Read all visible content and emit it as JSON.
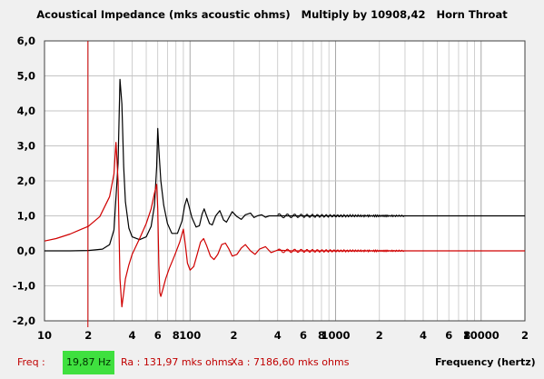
{
  "header": {
    "title": "Acoustical Impedance (mks acoustic ohms)   Multiply by 10908,42   Horn Throat"
  },
  "status": {
    "freq_label": "Freq :",
    "freq_value": "19,87 Hz",
    "ra": "Ra : 131,97 mks ohms",
    "xa": "Xa : 7186,60 mks ohms",
    "xlabel": "Frequency (hertz)"
  },
  "colors": {
    "resistance": "#000000",
    "reactance": "#d00000",
    "cursor": "#cc0000",
    "highlight": "#3fe03f",
    "grid": "#c4c4c4"
  },
  "chart_data": {
    "type": "line",
    "title": "Acoustical Impedance (mks acoustic ohms)   Multiply by 10908,42   Horn Throat",
    "xlabel": "Frequency (hertz)",
    "ylabel": "",
    "xscale": "log",
    "xlim": [
      10,
      20000
    ],
    "ylim": [
      -2.0,
      6.0
    ],
    "grid": true,
    "y_ticks": [
      "6,0",
      "5,0",
      "4,0",
      "3,0",
      "2,0",
      "1,0",
      "0,0",
      "-1,0",
      "-2,0"
    ],
    "x_ticks": [
      {
        "value": 10,
        "label": "10"
      },
      {
        "value": 20,
        "label": "2"
      },
      {
        "value": 40,
        "label": "4"
      },
      {
        "value": 60,
        "label": "6"
      },
      {
        "value": 80,
        "label": "8"
      },
      {
        "value": 100,
        "label": "100"
      },
      {
        "value": 200,
        "label": "2"
      },
      {
        "value": 400,
        "label": "4"
      },
      {
        "value": 600,
        "label": "6"
      },
      {
        "value": 800,
        "label": "8"
      },
      {
        "value": 1000,
        "label": "1000"
      },
      {
        "value": 2000,
        "label": "2"
      },
      {
        "value": 4000,
        "label": "4"
      },
      {
        "value": 6000,
        "label": "6"
      },
      {
        "value": 8000,
        "label": "8"
      },
      {
        "value": 10000,
        "label": "10000"
      },
      {
        "value": 20000,
        "label": "2"
      }
    ],
    "cursor_x": 19.87,
    "series": [
      {
        "role": "resistance",
        "color": "#000000",
        "x": [
          10,
          15,
          20,
          25,
          28,
          30,
          32,
          33,
          34,
          35,
          36,
          38,
          40,
          45,
          50,
          54,
          57,
          59,
          60,
          61,
          63,
          66,
          70,
          75,
          82,
          88,
          92,
          95,
          98,
          103,
          110,
          116,
          121,
          125,
          130,
          136,
          142,
          150,
          160,
          170,
          178,
          185,
          195,
          210,
          225,
          240,
          260,
          275,
          290,
          310,
          330,
          350,
          400,
          500,
          700,
          1000,
          2000,
          5000,
          10000,
          20000
        ],
        "y": [
          0.0,
          0.0,
          0.01,
          0.05,
          0.18,
          0.6,
          2.5,
          4.9,
          4.2,
          2.4,
          1.4,
          0.65,
          0.4,
          0.32,
          0.4,
          0.7,
          1.3,
          2.4,
          3.5,
          2.9,
          2.0,
          1.3,
          0.78,
          0.5,
          0.5,
          0.85,
          1.3,
          1.5,
          1.3,
          0.95,
          0.68,
          0.72,
          1.05,
          1.2,
          1.0,
          0.78,
          0.74,
          1.0,
          1.15,
          0.88,
          0.82,
          0.95,
          1.12,
          0.98,
          0.9,
          1.03,
          1.08,
          0.95,
          1.0,
          1.03,
          0.96,
          1.0,
          1.0,
          1.0,
          1.0,
          1.0,
          1.0,
          1.0,
          1.0,
          1.0
        ]
      },
      {
        "role": "reactance",
        "color": "#d00000",
        "x": [
          10,
          12,
          15,
          18,
          20,
          24,
          28,
          30,
          31,
          32,
          33,
          34,
          35,
          36,
          38,
          40,
          45,
          50,
          54,
          57,
          59,
          60,
          61,
          62,
          63,
          65,
          68,
          72,
          78,
          85,
          90,
          93,
          96,
          100,
          106,
          112,
          118,
          124,
          130,
          138,
          146,
          155,
          165,
          175,
          185,
          195,
          210,
          225,
          240,
          260,
          280,
          300,
          330,
          360,
          400,
          500,
          700,
          1000,
          2000,
          5000,
          10000,
          20000
        ],
        "y": [
          0.28,
          0.35,
          0.48,
          0.62,
          0.7,
          0.98,
          1.55,
          2.2,
          3.1,
          2.0,
          -0.8,
          -1.6,
          -1.2,
          -0.8,
          -0.4,
          -0.1,
          0.35,
          0.78,
          1.2,
          1.65,
          1.9,
          1.2,
          -0.4,
          -1.2,
          -1.3,
          -1.1,
          -0.8,
          -0.5,
          -0.15,
          0.25,
          0.62,
          0.15,
          -0.35,
          -0.55,
          -0.45,
          -0.1,
          0.25,
          0.35,
          0.15,
          -0.15,
          -0.25,
          -0.1,
          0.18,
          0.22,
          0.05,
          -0.15,
          -0.1,
          0.08,
          0.18,
          0.0,
          -0.1,
          0.05,
          0.12,
          -0.05,
          0.02,
          0.0,
          0.0,
          0.0,
          0.0,
          0.0,
          0.0,
          0.0
        ]
      }
    ]
  }
}
